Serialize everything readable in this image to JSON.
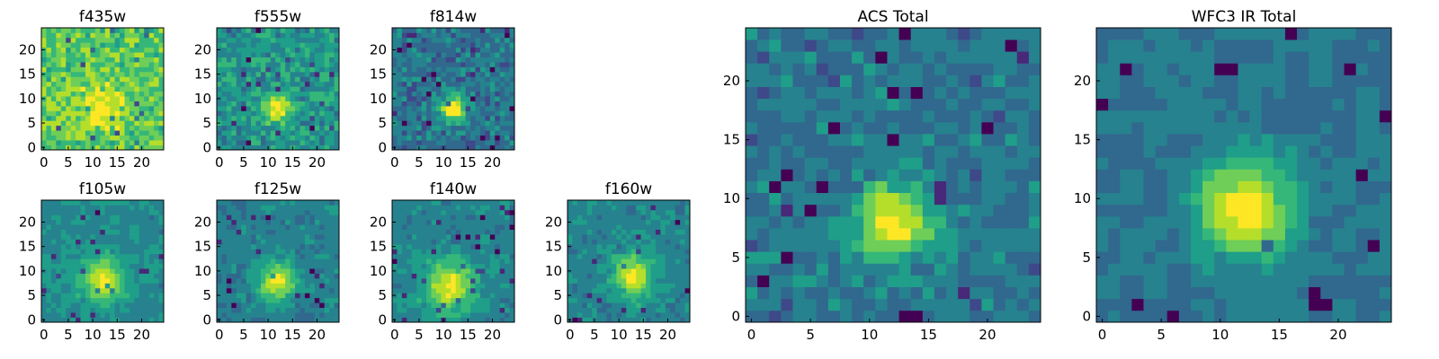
{
  "colormap": [
    "#440154",
    "#482878",
    "#3e4989",
    "#31688e",
    "#26828e",
    "#1f9e89",
    "#35b779",
    "#6ece58",
    "#b5de2b",
    "#fde725"
  ],
  "chart_data": [
    {
      "type": "heatmap",
      "title": "f435w",
      "grid_size": 25,
      "xticks": [
        0,
        5,
        10,
        15,
        20
      ],
      "yticks": [
        0,
        5,
        10,
        15,
        20
      ],
      "xlim": [
        0,
        25
      ],
      "ylim": [
        0,
        25
      ],
      "peak": [
        12,
        8
      ],
      "sigma": 3.2,
      "background": 0.72,
      "amplitude": 0.22,
      "noise": 0.28,
      "seed": 11
    },
    {
      "type": "heatmap",
      "title": "f555w",
      "grid_size": 25,
      "xticks": [
        0,
        5,
        10,
        15,
        20
      ],
      "yticks": [
        0,
        5,
        10,
        15,
        20
      ],
      "xlim": [
        0,
        25
      ],
      "ylim": [
        0,
        25
      ],
      "peak": [
        12,
        8
      ],
      "sigma": 2.0,
      "background": 0.52,
      "amplitude": 0.45,
      "noise": 0.28,
      "seed": 23
    },
    {
      "type": "heatmap",
      "title": "f814w",
      "grid_size": 25,
      "xticks": [
        0,
        5,
        10,
        15,
        20
      ],
      "yticks": [
        0,
        5,
        10,
        15,
        20
      ],
      "xlim": [
        0,
        25
      ],
      "ylim": [
        0,
        25
      ],
      "peak": [
        12,
        8
      ],
      "sigma": 2.0,
      "background": 0.4,
      "amplitude": 0.58,
      "noise": 0.26,
      "seed": 37
    },
    {
      "type": "heatmap",
      "title": "f105w",
      "grid_size": 25,
      "xticks": [
        0,
        5,
        10,
        15,
        20
      ],
      "yticks": [
        0,
        5,
        10,
        15,
        20
      ],
      "xlim": [
        0,
        25
      ],
      "ylim": [
        0,
        25
      ],
      "peak": [
        12,
        8
      ],
      "sigma": 3.0,
      "background": 0.48,
      "amplitude": 0.45,
      "noise": 0.18,
      "seed": 41,
      "block": 2
    },
    {
      "type": "heatmap",
      "title": "f125w",
      "grid_size": 25,
      "xticks": [
        0,
        5,
        10,
        15,
        20
      ],
      "yticks": [
        0,
        5,
        10,
        15,
        20
      ],
      "xlim": [
        0,
        25
      ],
      "ylim": [
        0,
        25
      ],
      "peak": [
        12,
        8
      ],
      "sigma": 2.8,
      "background": 0.44,
      "amplitude": 0.48,
      "noise": 0.2,
      "seed": 53,
      "block": 2
    },
    {
      "type": "heatmap",
      "title": "f140w",
      "grid_size": 25,
      "xticks": [
        0,
        5,
        10,
        15,
        20
      ],
      "yticks": [
        0,
        5,
        10,
        15,
        20
      ],
      "xlim": [
        0,
        25
      ],
      "ylim": [
        0,
        25
      ],
      "peak": [
        11,
        7
      ],
      "sigma": 3.6,
      "background": 0.46,
      "amplitude": 0.46,
      "noise": 0.2,
      "seed": 67,
      "block": 2
    },
    {
      "type": "heatmap",
      "title": "f160w",
      "grid_size": 25,
      "xticks": [
        0,
        5,
        10,
        15,
        20
      ],
      "yticks": [
        0,
        5,
        10,
        15,
        20
      ],
      "xlim": [
        0,
        25
      ],
      "ylim": [
        0,
        25
      ],
      "peak": [
        13,
        9
      ],
      "sigma": 2.8,
      "background": 0.46,
      "amplitude": 0.5,
      "noise": 0.22,
      "seed": 79,
      "block": 2
    },
    {
      "type": "heatmap",
      "title": "ACS Total",
      "grid_size": 25,
      "xticks": [
        0,
        5,
        10,
        15,
        20
      ],
      "yticks": [
        0,
        5,
        10,
        15,
        20
      ],
      "xlim": [
        0,
        25
      ],
      "ylim": [
        0,
        25
      ],
      "peak": [
        12,
        8
      ],
      "sigma": 2.2,
      "background": 0.4,
      "amplitude": 0.6,
      "noise": 0.22,
      "seed": 97
    },
    {
      "type": "heatmap",
      "title": "WFC3 IR Total",
      "grid_size": 25,
      "xticks": [
        0,
        5,
        10,
        15,
        20
      ],
      "yticks": [
        0,
        5,
        10,
        15,
        20
      ],
      "xlim": [
        0,
        25
      ],
      "ylim": [
        0,
        25
      ],
      "peak": [
        12,
        9
      ],
      "sigma": 2.8,
      "background": 0.4,
      "amplitude": 0.6,
      "noise": 0.18,
      "seed": 113,
      "block": 2
    }
  ]
}
